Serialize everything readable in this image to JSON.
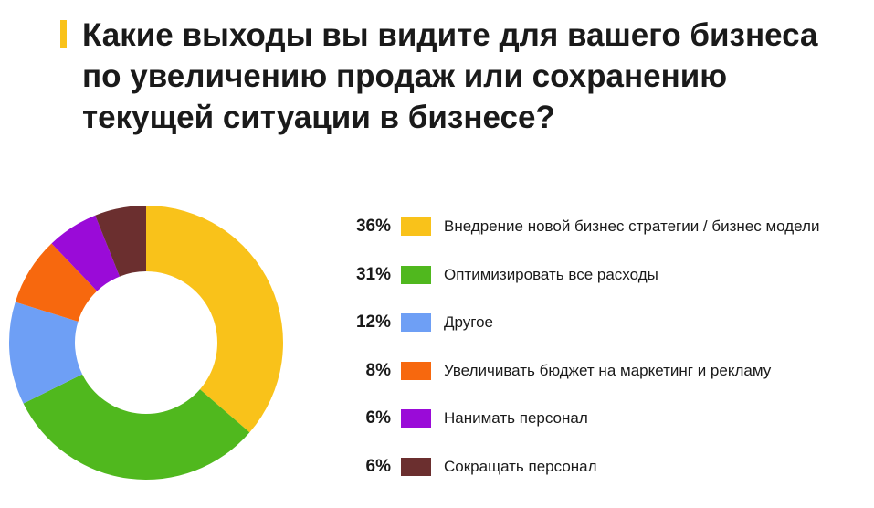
{
  "title": "Какие выходы вы видите для вашего бизнеса\nпо увеличению продаж или сохранению\nтекущей ситуации в бизнесе?",
  "colors": {
    "accent": "#f9c21a"
  },
  "chart_data": {
    "type": "pie",
    "title": "Какие выходы вы видите для вашего бизнеса по увеличению продаж или сохранению текущей ситуации в бизнесе?",
    "donut": true,
    "legend_position": "right",
    "slices": [
      {
        "label": "Внедрение новой бизнес стратегии / бизнес модели",
        "value": 36,
        "value_label": "36%",
        "color": "#f9c21a"
      },
      {
        "label": "Оптимизировать все расходы",
        "value": 31,
        "value_label": "31%",
        "color": "#50b81e"
      },
      {
        "label": "Другое",
        "value": 12,
        "value_label": "12%",
        "color": "#6e9ff5"
      },
      {
        "label": "Увеличивать бюджет на маркетинг и рекламу",
        "value": 8,
        "value_label": "8%",
        "color": "#f7680e"
      },
      {
        "label": "Нанимать персонал",
        "value": 6,
        "value_label": "6%",
        "color": "#9a0bd8"
      },
      {
        "label": "Сокращать персонал",
        "value": 6,
        "value_label": "6%",
        "color": "#6b2f2f"
      }
    ]
  }
}
